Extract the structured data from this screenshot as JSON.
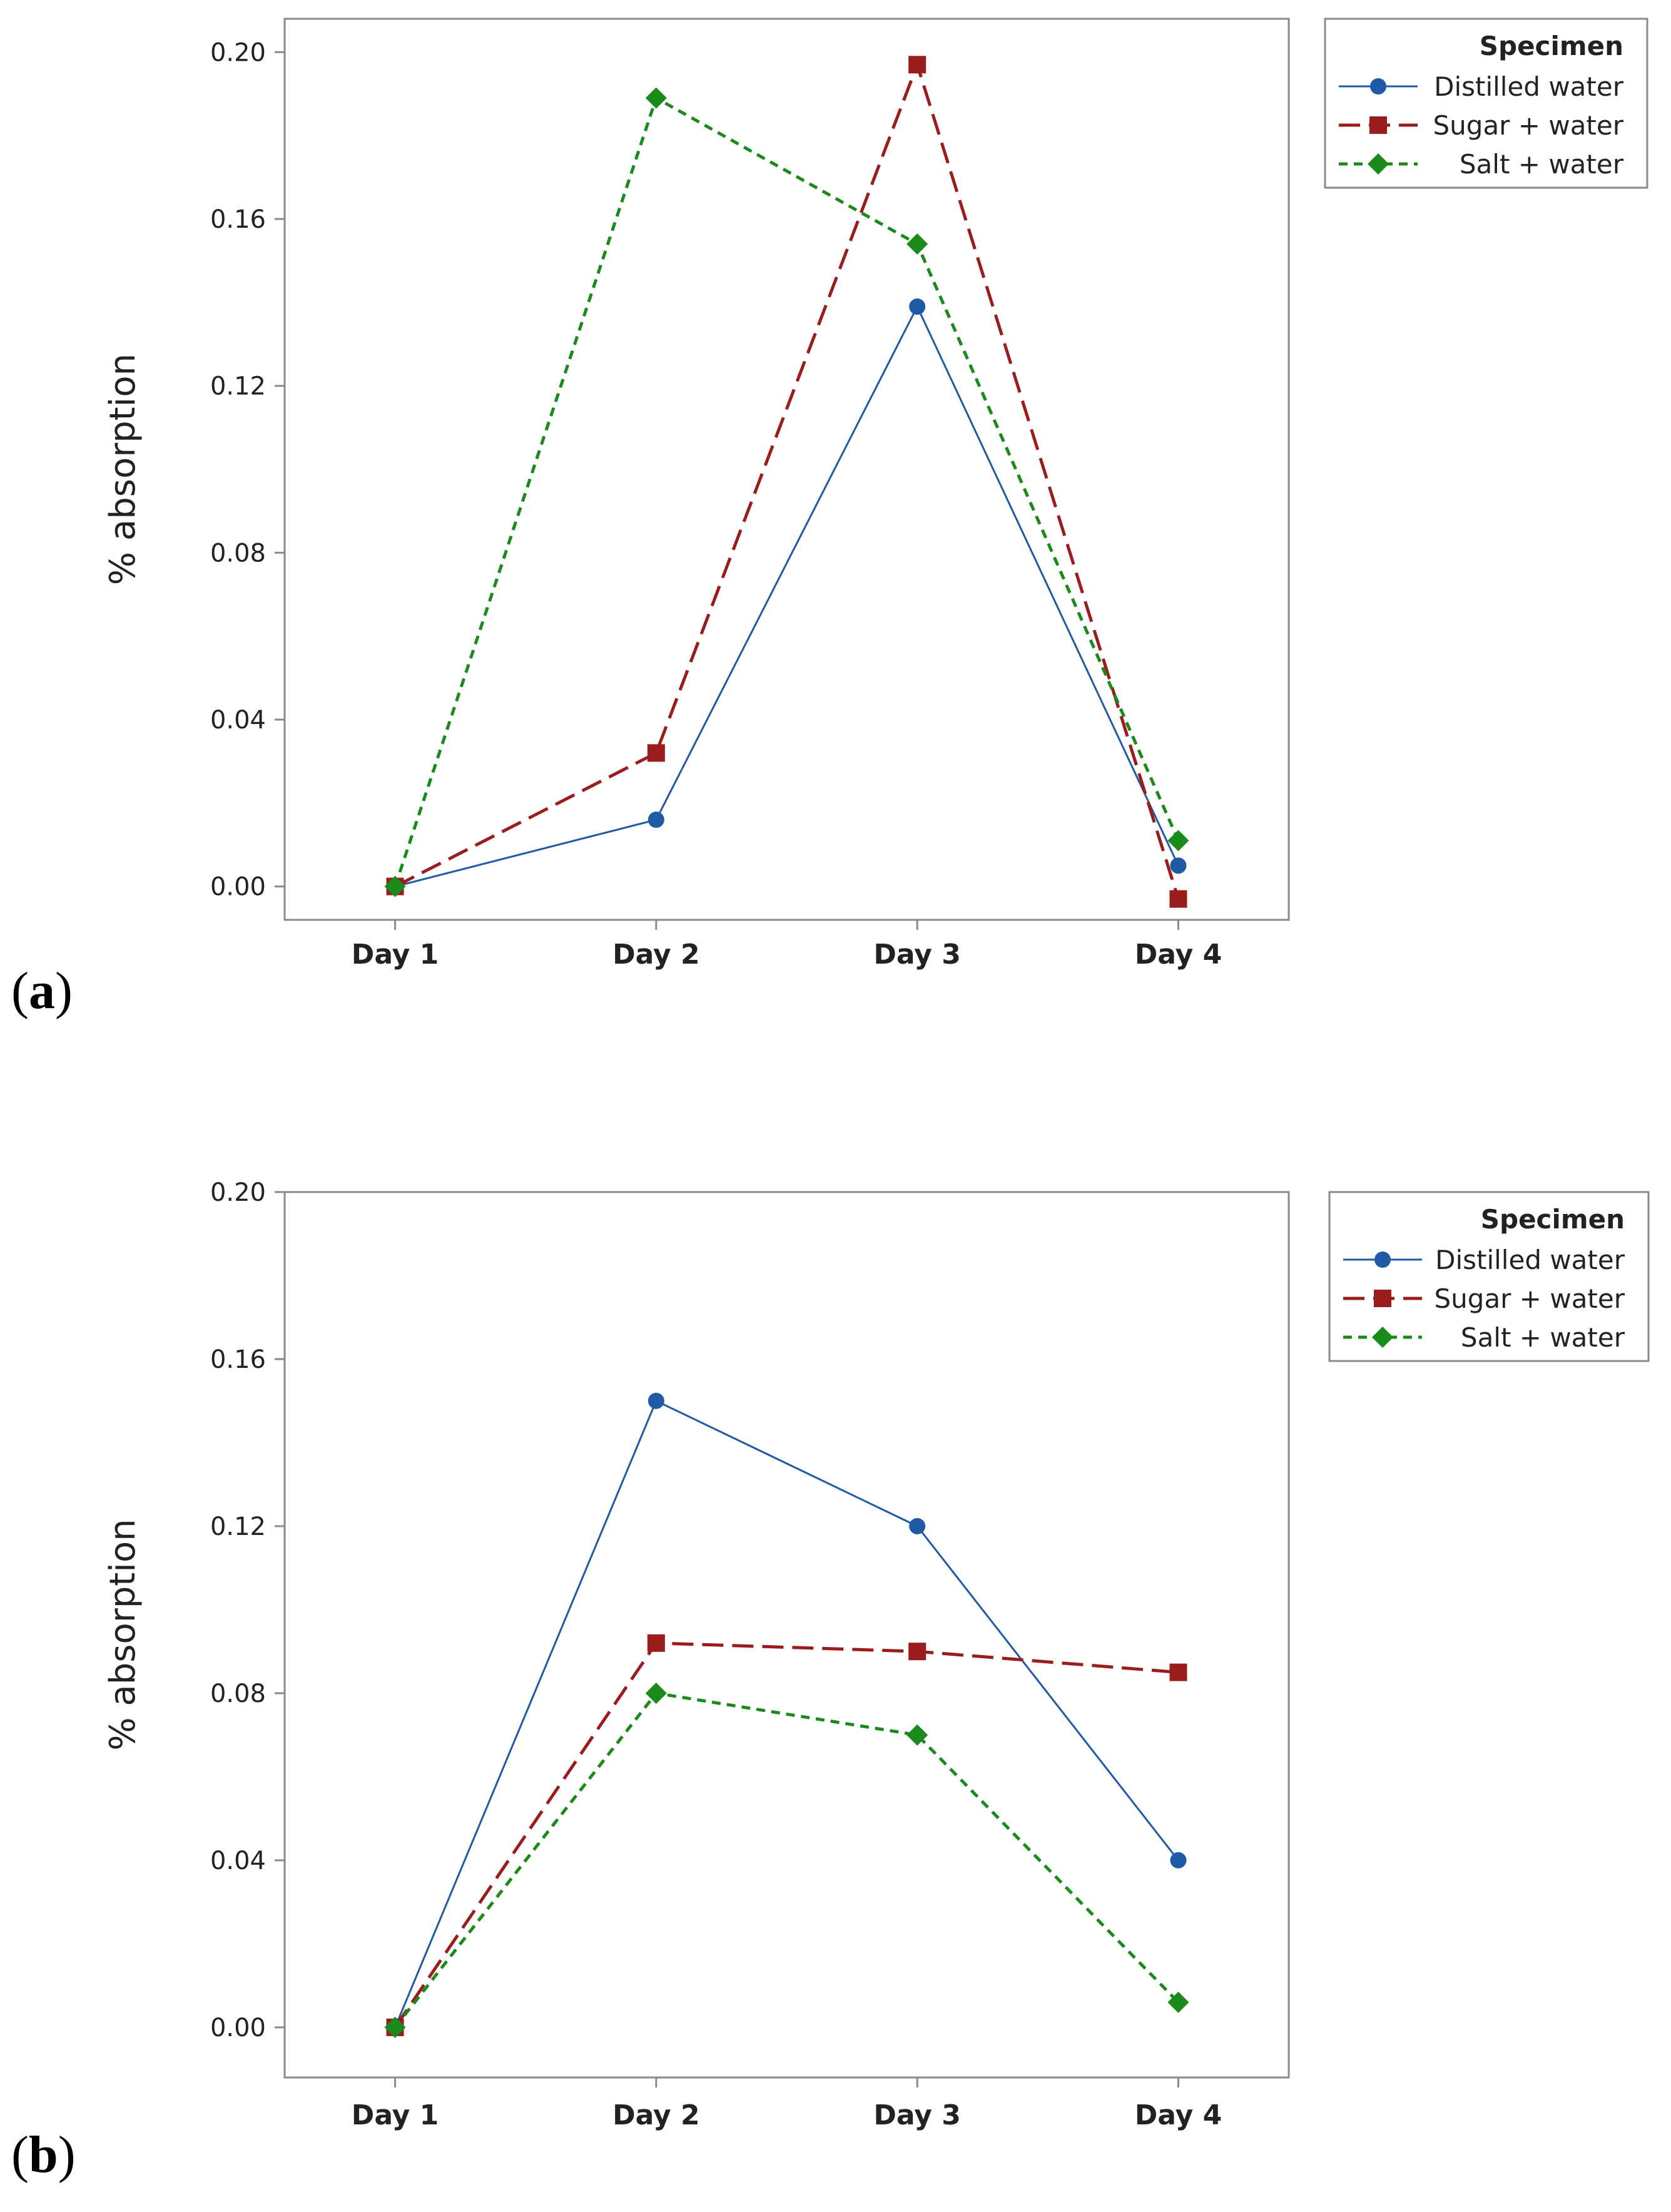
{
  "panels": [
    {
      "label": "a"
    },
    {
      "label": "b"
    }
  ],
  "colors": {
    "distilled": "#1f5aa6",
    "sugar": "#9b1c1c",
    "salt": "#1a8a1a",
    "frame": "#8a8a8a"
  },
  "chart_data": [
    {
      "type": "line",
      "panel": "a",
      "title": "",
      "xlabel": "",
      "ylabel": "% absorption",
      "ylim": [
        -0.008,
        0.208
      ],
      "yticks": [
        0.0,
        0.04,
        0.08,
        0.12,
        0.16,
        0.2
      ],
      "ytick_labels": [
        "0.00",
        "0.04",
        "0.08",
        "0.12",
        "0.16",
        "0.20"
      ],
      "categories": [
        "Day 1",
        "Day 2",
        "Day 3",
        "Day 4"
      ],
      "legend": {
        "title": "Specimen",
        "position": "right-top"
      },
      "series": [
        {
          "name": "Distilled water",
          "marker": "circle",
          "dash": "solid",
          "color_key": "distilled",
          "values": [
            0.0,
            0.016,
            0.139,
            0.005
          ]
        },
        {
          "name": "Sugar + water",
          "marker": "square",
          "dash": "long",
          "color_key": "sugar",
          "values": [
            0.0,
            0.032,
            0.197,
            -0.003
          ]
        },
        {
          "name": "Salt + water",
          "marker": "diamond",
          "dash": "short",
          "color_key": "salt",
          "values": [
            0.0,
            0.189,
            0.154,
            0.011
          ]
        }
      ]
    },
    {
      "type": "line",
      "panel": "b",
      "title": "",
      "xlabel": "",
      "ylabel": "% absorption",
      "ylim": [
        -0.012,
        0.2
      ],
      "yticks": [
        0.0,
        0.04,
        0.08,
        0.12,
        0.16,
        0.2
      ],
      "ytick_labels": [
        "0.00",
        "0.04",
        "0.08",
        "0.12",
        "0.16",
        "0.20"
      ],
      "categories": [
        "Day 1",
        "Day 2",
        "Day 3",
        "Day 4"
      ],
      "legend": {
        "title": "Specimen",
        "position": "right-top"
      },
      "series": [
        {
          "name": "Distilled water",
          "marker": "circle",
          "dash": "solid",
          "color_key": "distilled",
          "values": [
            0.0,
            0.15,
            0.12,
            0.04
          ]
        },
        {
          "name": "Sugar +  water",
          "marker": "square",
          "dash": "long",
          "color_key": "sugar",
          "values": [
            0.0,
            0.092,
            0.09,
            0.085
          ]
        },
        {
          "name": "Salt + water",
          "marker": "diamond",
          "dash": "short",
          "color_key": "salt",
          "values": [
            0.0,
            0.08,
            0.07,
            0.006
          ]
        }
      ]
    }
  ]
}
